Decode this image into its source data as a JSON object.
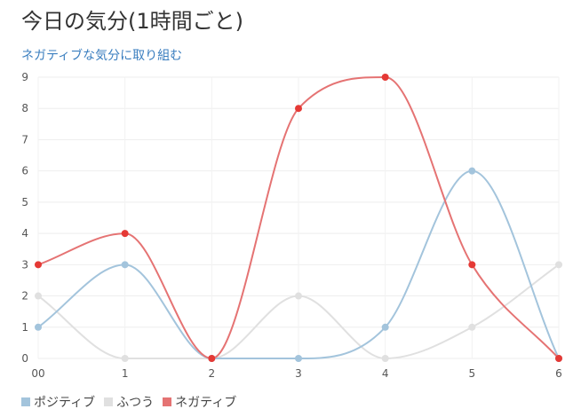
{
  "header": {
    "title": "今日の気分(1時間ごと)",
    "link_text": "ネガティブな気分に取り組む"
  },
  "chart_data": {
    "type": "line",
    "categories": [
      "00",
      "1",
      "2",
      "3",
      "4",
      "5",
      "6"
    ],
    "ylim": [
      0,
      9
    ],
    "yticks": [
      "0",
      "1",
      "2",
      "3",
      "4",
      "5",
      "6",
      "7",
      "8",
      "9"
    ],
    "grid": true,
    "smooth": true,
    "legend_position": "bottom-left",
    "series": [
      {
        "name": "ポジティブ",
        "color": "#a3c4dc",
        "values": [
          1,
          3,
          0,
          0,
          1,
          6,
          0
        ]
      },
      {
        "name": "ふつう",
        "color": "#e0e0e0",
        "values": [
          2,
          0,
          0,
          2,
          0,
          1,
          3
        ]
      },
      {
        "name": "ネガティブ",
        "color": "#e57373",
        "point_color": "#e53935",
        "values": [
          3,
          4,
          0,
          8,
          9,
          3,
          0
        ]
      }
    ]
  }
}
